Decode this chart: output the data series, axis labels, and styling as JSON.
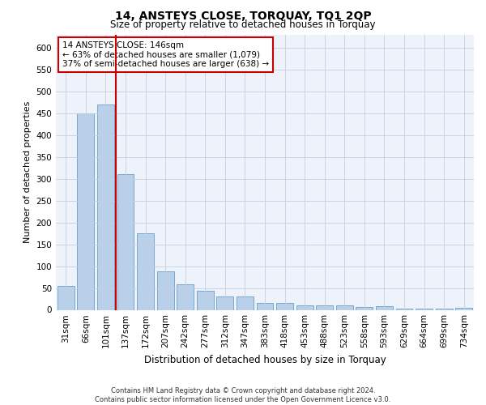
{
  "title": "14, ANSTEYS CLOSE, TORQUAY, TQ1 2QP",
  "subtitle": "Size of property relative to detached houses in Torquay",
  "xlabel": "Distribution of detached houses by size in Torquay",
  "ylabel": "Number of detached properties",
  "categories": [
    "31sqm",
    "66sqm",
    "101sqm",
    "137sqm",
    "172sqm",
    "207sqm",
    "242sqm",
    "277sqm",
    "312sqm",
    "347sqm",
    "383sqm",
    "418sqm",
    "453sqm",
    "488sqm",
    "523sqm",
    "558sqm",
    "593sqm",
    "629sqm",
    "664sqm",
    "699sqm",
    "734sqm"
  ],
  "values": [
    55,
    450,
    470,
    310,
    175,
    88,
    58,
    43,
    30,
    30,
    15,
    15,
    10,
    10,
    10,
    7,
    8,
    3,
    3,
    3,
    5
  ],
  "bar_color": "#b8d0ea",
  "bar_edge_color": "#6a9fc8",
  "vline_color": "#cc0000",
  "annotation_line1": "14 ANSTEYS CLOSE: 146sqm",
  "annotation_line2": "← 63% of detached houses are smaller (1,079)",
  "annotation_line3": "37% of semi-detached houses are larger (638) →",
  "annotation_box_color": "#ffffff",
  "annotation_box_edge_color": "#cc0000",
  "ylim": [
    0,
    630
  ],
  "yticks": [
    0,
    50,
    100,
    150,
    200,
    250,
    300,
    350,
    400,
    450,
    500,
    550,
    600
  ],
  "footer_line1": "Contains HM Land Registry data © Crown copyright and database right 2024.",
  "footer_line2": "Contains public sector information licensed under the Open Government Licence v3.0.",
  "bg_color": "#eef2fb",
  "grid_color": "#c8cedf",
  "title_fontsize": 10,
  "subtitle_fontsize": 8.5,
  "xlabel_fontsize": 8.5,
  "ylabel_fontsize": 8,
  "tick_fontsize": 7.5,
  "footer_fontsize": 6,
  "annotation_fontsize": 7.5
}
